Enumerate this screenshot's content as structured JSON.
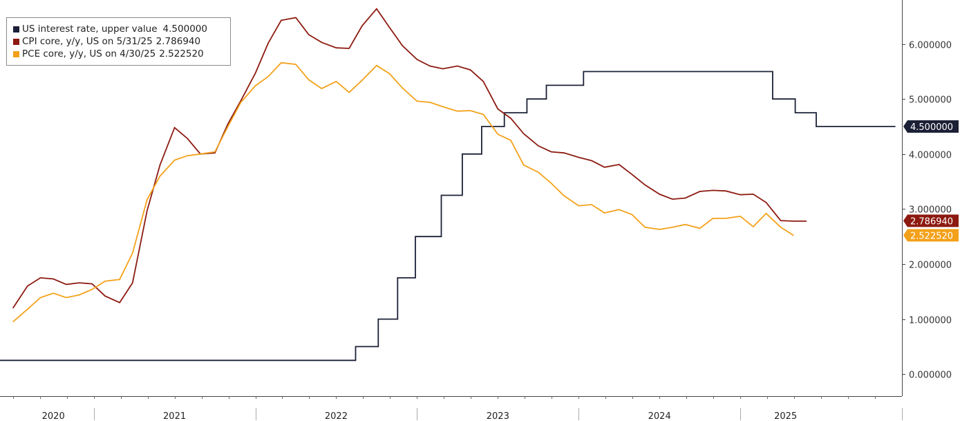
{
  "chart_data": {
    "type": "line",
    "title": "",
    "xlabel": "",
    "ylabel": "",
    "x_range": [
      2019.92,
      2025.5
    ],
    "ylim": [
      -0.4,
      6.8
    ],
    "y_ticks": [
      0,
      1,
      2,
      3,
      4,
      5,
      6
    ],
    "y_tick_labels": [
      "0.000000",
      "1.000000",
      "2.000000",
      "3.000000",
      "4.000000",
      "5.000000",
      "6.000000"
    ],
    "x_tick_boundaries": [
      2020.5,
      2021.5,
      2022.5,
      2023.5,
      2024.5,
      2025.5
    ],
    "x_year_labels": [
      {
        "label": "2020",
        "x": 2020.25
      },
      {
        "label": "2021",
        "x": 2021.0
      },
      {
        "label": "2022",
        "x": 2022.0
      },
      {
        "label": "2023",
        "x": 2023.0
      },
      {
        "label": "2024",
        "x": 2024.0
      },
      {
        "label": "2025",
        "x": 2024.78
      }
    ],
    "legend_position": "top-left",
    "series": [
      {
        "name": "US interest rate, upper value",
        "legend_value": "4.500000",
        "last_value": "4.500000",
        "color": "#1b2036",
        "step": true,
        "points": [
          [
            2019.92,
            0.25
          ],
          [
            2022.12,
            0.5
          ],
          [
            2022.26,
            1.0
          ],
          [
            2022.38,
            1.75
          ],
          [
            2022.49,
            2.5
          ],
          [
            2022.65,
            3.25
          ],
          [
            2022.78,
            4.0
          ],
          [
            2022.9,
            4.5
          ],
          [
            2023.04,
            4.75
          ],
          [
            2023.18,
            5.0
          ],
          [
            2023.3,
            5.25
          ],
          [
            2023.53,
            5.5
          ],
          [
            2024.7,
            5.0
          ],
          [
            2024.84,
            4.75
          ],
          [
            2024.97,
            4.5
          ],
          [
            2025.46,
            4.5
          ]
        ]
      },
      {
        "name": "CPI core, y/y, US on 5/31/25",
        "legend_value": "2.786940",
        "last_value": "2.786940",
        "color": "#8c1a10",
        "step": false,
        "points": [
          [
            2020.0,
            1.2
          ],
          [
            2020.09,
            1.6
          ],
          [
            2020.17,
            1.75
          ],
          [
            2020.25,
            1.73
          ],
          [
            2020.33,
            1.63
          ],
          [
            2020.41,
            1.66
          ],
          [
            2020.49,
            1.64
          ],
          [
            2020.57,
            1.42
          ],
          [
            2020.66,
            1.3
          ],
          [
            2020.74,
            1.66
          ],
          [
            2020.83,
            2.97
          ],
          [
            2020.91,
            3.8
          ],
          [
            2021.0,
            4.48
          ],
          [
            2021.08,
            4.28
          ],
          [
            2021.16,
            4.0
          ],
          [
            2021.25,
            4.02
          ],
          [
            2021.33,
            4.55
          ],
          [
            2021.41,
            4.97
          ],
          [
            2021.5,
            5.47
          ],
          [
            2021.58,
            6.02
          ],
          [
            2021.66,
            6.43
          ],
          [
            2021.75,
            6.48
          ],
          [
            2021.83,
            6.17
          ],
          [
            2021.91,
            6.03
          ],
          [
            2022.0,
            5.93
          ],
          [
            2022.08,
            5.92
          ],
          [
            2022.16,
            6.33
          ],
          [
            2022.25,
            6.64
          ],
          [
            2022.33,
            6.3
          ],
          [
            2022.41,
            5.97
          ],
          [
            2022.5,
            5.72
          ],
          [
            2022.58,
            5.6
          ],
          [
            2022.66,
            5.55
          ],
          [
            2022.75,
            5.6
          ],
          [
            2022.83,
            5.53
          ],
          [
            2022.91,
            5.32
          ],
          [
            2023.0,
            4.82
          ],
          [
            2023.08,
            4.65
          ],
          [
            2023.16,
            4.37
          ],
          [
            2023.25,
            4.15
          ],
          [
            2023.33,
            4.04
          ],
          [
            2023.41,
            4.02
          ],
          [
            2023.5,
            3.94
          ],
          [
            2023.58,
            3.88
          ],
          [
            2023.66,
            3.76
          ],
          [
            2023.75,
            3.81
          ],
          [
            2023.83,
            3.63
          ],
          [
            2023.91,
            3.44
          ],
          [
            2024.0,
            3.27
          ],
          [
            2024.08,
            3.18
          ],
          [
            2024.16,
            3.2
          ],
          [
            2024.25,
            3.32
          ],
          [
            2024.33,
            3.34
          ],
          [
            2024.41,
            3.33
          ],
          [
            2024.5,
            3.26
          ],
          [
            2024.58,
            3.27
          ],
          [
            2024.66,
            3.12
          ],
          [
            2024.75,
            2.79
          ],
          [
            2024.83,
            2.78
          ],
          [
            2024.91,
            2.78
          ]
        ]
      },
      {
        "name": "PCE core, y/y, US on 4/30/25",
        "legend_value": "2.522520",
        "last_value": "2.522520",
        "color": "#f3a11a",
        "step": false,
        "points": [
          [
            2020.0,
            0.95
          ],
          [
            2020.09,
            1.18
          ],
          [
            2020.17,
            1.39
          ],
          [
            2020.25,
            1.47
          ],
          [
            2020.33,
            1.39
          ],
          [
            2020.41,
            1.44
          ],
          [
            2020.49,
            1.54
          ],
          [
            2020.57,
            1.69
          ],
          [
            2020.66,
            1.72
          ],
          [
            2020.74,
            2.2
          ],
          [
            2020.83,
            3.17
          ],
          [
            2020.91,
            3.6
          ],
          [
            2021.0,
            3.89
          ],
          [
            2021.08,
            3.97
          ],
          [
            2021.16,
            4.0
          ],
          [
            2021.25,
            4.04
          ],
          [
            2021.33,
            4.5
          ],
          [
            2021.41,
            4.94
          ],
          [
            2021.5,
            5.24
          ],
          [
            2021.58,
            5.41
          ],
          [
            2021.66,
            5.66
          ],
          [
            2021.75,
            5.63
          ],
          [
            2021.83,
            5.35
          ],
          [
            2021.91,
            5.19
          ],
          [
            2022.0,
            5.32
          ],
          [
            2022.08,
            5.12
          ],
          [
            2022.16,
            5.34
          ],
          [
            2022.25,
            5.61
          ],
          [
            2022.33,
            5.46
          ],
          [
            2022.41,
            5.2
          ],
          [
            2022.5,
            4.96
          ],
          [
            2022.58,
            4.94
          ],
          [
            2022.66,
            4.86
          ],
          [
            2022.75,
            4.78
          ],
          [
            2022.83,
            4.79
          ],
          [
            2022.91,
            4.72
          ],
          [
            2023.0,
            4.36
          ],
          [
            2023.08,
            4.25
          ],
          [
            2023.16,
            3.8
          ],
          [
            2023.25,
            3.67
          ],
          [
            2023.33,
            3.47
          ],
          [
            2023.41,
            3.24
          ],
          [
            2023.5,
            3.06
          ],
          [
            2023.58,
            3.08
          ],
          [
            2023.66,
            2.93
          ],
          [
            2023.75,
            2.99
          ],
          [
            2023.83,
            2.9
          ],
          [
            2023.91,
            2.67
          ],
          [
            2024.0,
            2.63
          ],
          [
            2024.08,
            2.67
          ],
          [
            2024.16,
            2.72
          ],
          [
            2024.25,
            2.65
          ],
          [
            2024.33,
            2.83
          ],
          [
            2024.41,
            2.83
          ],
          [
            2024.5,
            2.87
          ],
          [
            2024.58,
            2.68
          ],
          [
            2024.66,
            2.92
          ],
          [
            2024.75,
            2.67
          ],
          [
            2024.83,
            2.52
          ]
        ]
      }
    ]
  }
}
